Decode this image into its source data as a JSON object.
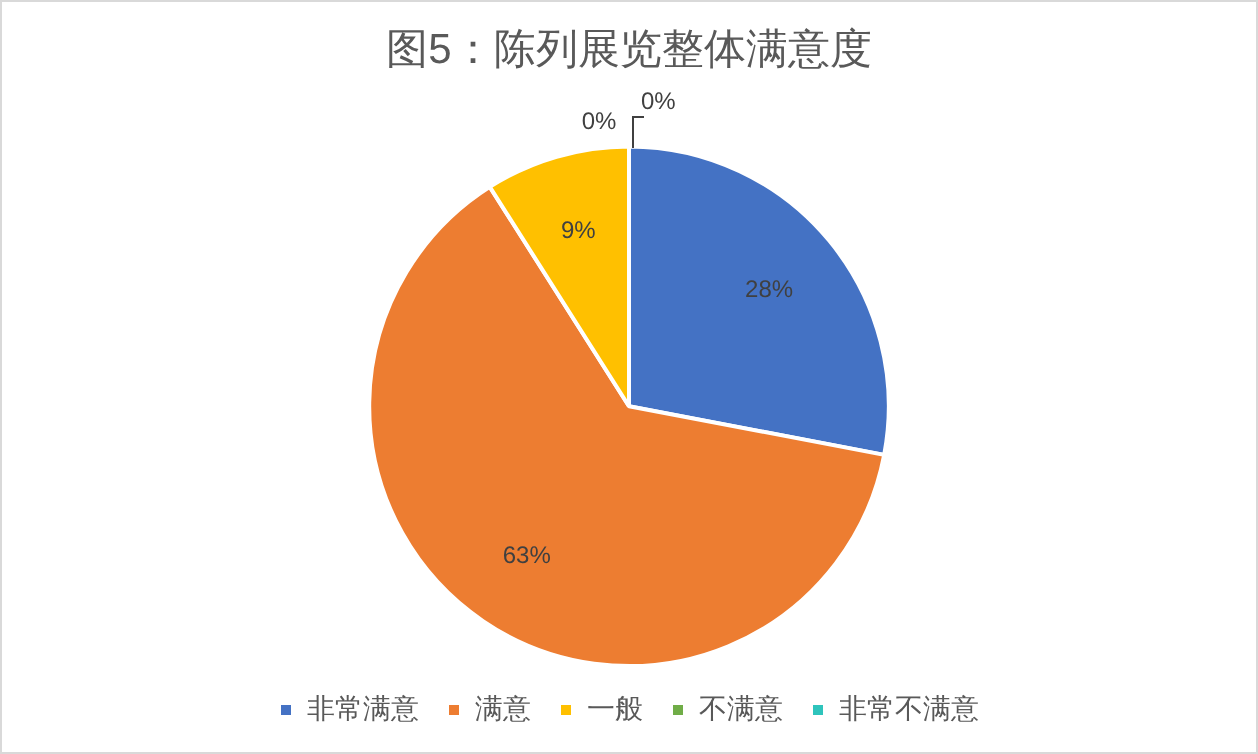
{
  "chart_data": {
    "type": "pie",
    "title": "图5：陈列展览整体满意度",
    "categories": [
      "非常满意",
      "满意",
      "一般",
      "不满意",
      "非常不满意"
    ],
    "values": [
      28,
      63,
      9,
      0,
      0
    ],
    "colors": [
      "#4472c4",
      "#ed7d31",
      "#ffc000",
      "#70ad47",
      "#2ec4bc"
    ],
    "value_labels": [
      "28%",
      "63%",
      "9%",
      "0%",
      "0%"
    ],
    "legend": "bottom"
  }
}
